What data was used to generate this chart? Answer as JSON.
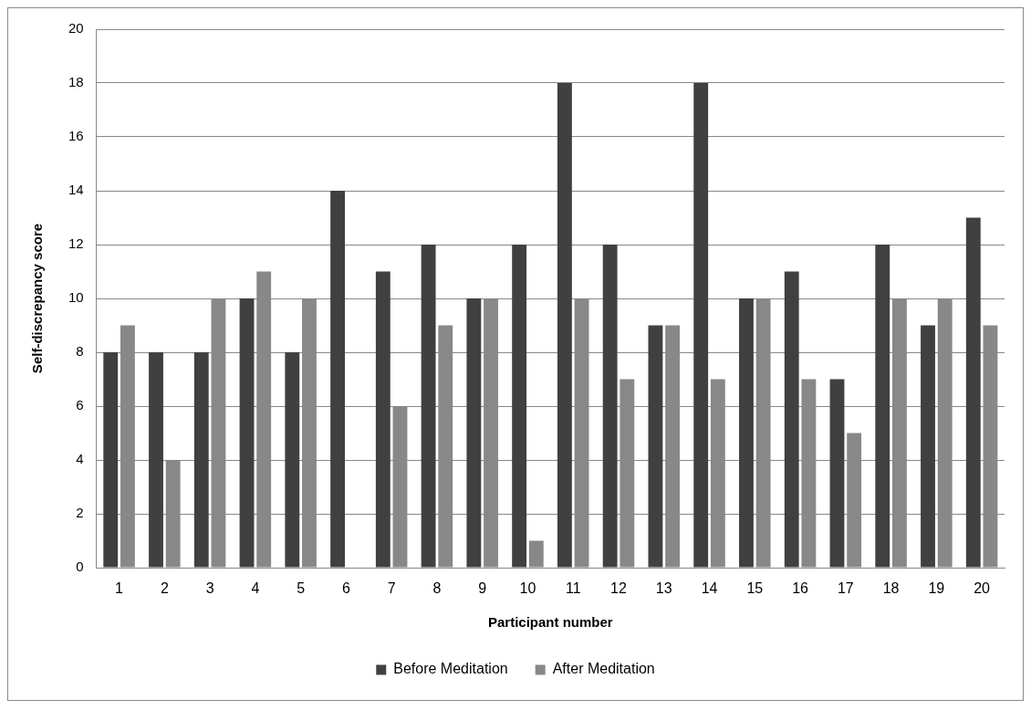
{
  "chart_data": {
    "type": "bar",
    "xlabel": "Participant number",
    "ylabel": "Self-discrepancy score",
    "categories": [
      "1",
      "2",
      "3",
      "4",
      "5",
      "6",
      "7",
      "8",
      "9",
      "10",
      "11",
      "12",
      "13",
      "14",
      "15",
      "16",
      "17",
      "18",
      "19",
      "20"
    ],
    "series": [
      {
        "name": "Before Meditation",
        "color": "#404040",
        "values": [
          8,
          8,
          8,
          10,
          8,
          14,
          11,
          12,
          10,
          12,
          18,
          12,
          9,
          18,
          10,
          11,
          7,
          12,
          9,
          13
        ]
      },
      {
        "name": "After Meditation",
        "color": "#888888",
        "values": [
          9,
          4,
          10,
          11,
          10,
          0,
          6,
          9,
          10,
          1,
          10,
          7,
          9,
          7,
          10,
          7,
          5,
          10,
          10,
          9
        ]
      }
    ],
    "ylim": [
      0,
      20
    ],
    "yticks": [
      0,
      2,
      4,
      6,
      8,
      10,
      12,
      14,
      16,
      18,
      20
    ],
    "grid": "y",
    "legend": "bottom"
  }
}
